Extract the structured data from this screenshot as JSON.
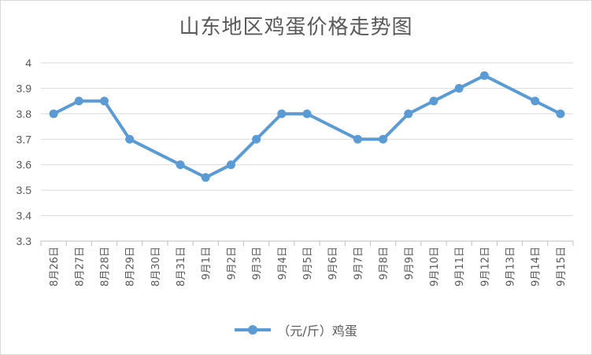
{
  "chart_data": {
    "type": "line",
    "title": "山东地区鸡蛋价格走势图",
    "categories": [
      "8月26日",
      "8月27日",
      "8月28日",
      "8月29日",
      "8月30日",
      "8月31日",
      "9月1日",
      "9月2日",
      "9月3日",
      "9月4日",
      "9月5日",
      "9月6日",
      "9月7日",
      "9月8日",
      "9月9日",
      "9月10日",
      "9月11日",
      "9月12日",
      "9月13日",
      "9月14日",
      "9月15日"
    ],
    "series": [
      {
        "name": "（元/斤）鸡蛋",
        "color": "#5b9bd5",
        "values": [
          3.8,
          3.85,
          3.85,
          3.7,
          null,
          3.6,
          3.55,
          3.6,
          3.7,
          3.8,
          3.8,
          null,
          3.7,
          3.7,
          3.8,
          3.85,
          3.9,
          3.95,
          null,
          3.85,
          3.8
        ]
      }
    ],
    "y_ticks": [
      "3.3",
      "3.4",
      "3.5",
      "3.6",
      "3.7",
      "3.8",
      "3.9",
      "4"
    ],
    "ylim": [
      3.3,
      4.0
    ],
    "grid": true,
    "legend_position": "bottom"
  }
}
